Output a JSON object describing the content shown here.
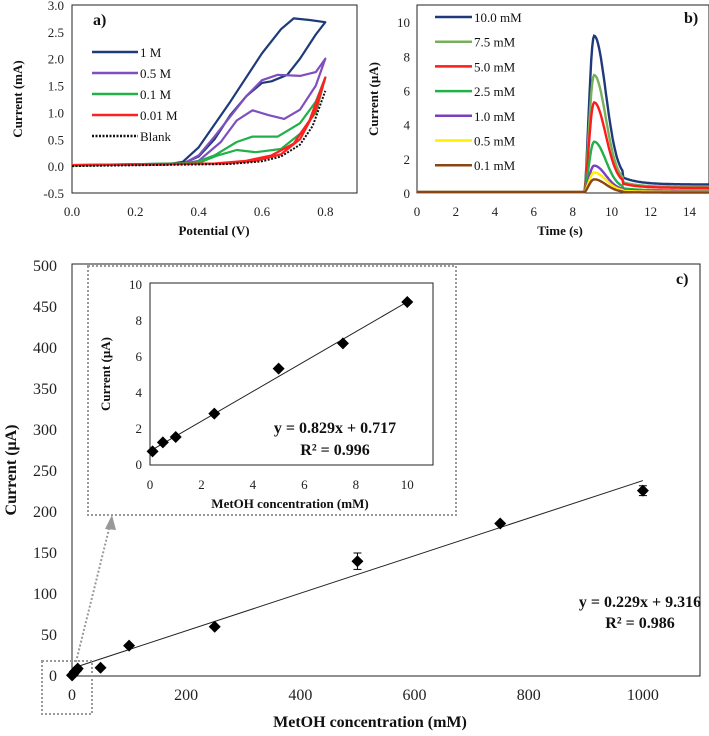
{
  "chart_data": [
    {
      "id": "a",
      "type": "line",
      "panel_label": "a)",
      "xlabel": "Potential (V)",
      "ylabel": "Current (mA)",
      "xlim": [
        0,
        0.9
      ],
      "ylim": [
        -0.5,
        3.0
      ],
      "xticks": [
        "0.0",
        "0.2",
        "0.4",
        "0.6",
        "0.8"
      ],
      "yticks": [
        "-0.5",
        "0.0",
        "0.5",
        "1.0",
        "1.5",
        "2.0",
        "2.5",
        "3.0"
      ],
      "series": [
        {
          "name": "1 M",
          "color": "#1f3a7a",
          "points": [
            [
              0,
              0.02
            ],
            [
              0.3,
              0.03
            ],
            [
              0.35,
              0.08
            ],
            [
              0.4,
              0.35
            ],
            [
              0.5,
              1.2
            ],
            [
              0.6,
              2.1
            ],
            [
              0.66,
              2.55
            ],
            [
              0.7,
              2.75
            ],
            [
              0.75,
              2.72
            ],
            [
              0.8,
              2.68
            ],
            [
              0.77,
              2.45
            ],
            [
              0.72,
              2.0
            ],
            [
              0.68,
              1.7
            ],
            [
              0.63,
              1.58
            ],
            [
              0.6,
              1.55
            ],
            [
              0.55,
              1.3
            ],
            [
              0.5,
              0.95
            ],
            [
              0.45,
              0.5
            ],
            [
              0.4,
              0.18
            ],
            [
              0.35,
              0.05
            ],
            [
              0,
              0.02
            ]
          ]
        },
        {
          "name": "0.5 M",
          "color": "#7e4fbf",
          "points": [
            [
              0,
              0.02
            ],
            [
              0.35,
              0.04
            ],
            [
              0.4,
              0.2
            ],
            [
              0.45,
              0.55
            ],
            [
              0.55,
              1.3
            ],
            [
              0.6,
              1.6
            ],
            [
              0.65,
              1.7
            ],
            [
              0.72,
              1.68
            ],
            [
              0.77,
              1.75
            ],
            [
              0.8,
              2.0
            ],
            [
              0.77,
              1.5
            ],
            [
              0.72,
              1.05
            ],
            [
              0.67,
              0.88
            ],
            [
              0.62,
              0.95
            ],
            [
              0.57,
              1.04
            ],
            [
              0.52,
              0.85
            ],
            [
              0.47,
              0.45
            ],
            [
              0.4,
              0.1
            ],
            [
              0.35,
              0.04
            ],
            [
              0,
              0.02
            ]
          ]
        },
        {
          "name": "0.1 M",
          "color": "#22b04a",
          "points": [
            [
              0,
              0.01
            ],
            [
              0.38,
              0.05
            ],
            [
              0.45,
              0.2
            ],
            [
              0.52,
              0.45
            ],
            [
              0.57,
              0.55
            ],
            [
              0.65,
              0.55
            ],
            [
              0.72,
              0.8
            ],
            [
              0.77,
              1.2
            ],
            [
              0.8,
              1.65
            ],
            [
              0.77,
              1.0
            ],
            [
              0.72,
              0.6
            ],
            [
              0.66,
              0.32
            ],
            [
              0.58,
              0.26
            ],
            [
              0.52,
              0.3
            ],
            [
              0.46,
              0.2
            ],
            [
              0.4,
              0.06
            ],
            [
              0,
              0.01
            ]
          ]
        },
        {
          "name": "0.01 M",
          "color": "#ff2020",
          "points": [
            [
              0,
              0.02
            ],
            [
              0.45,
              0.05
            ],
            [
              0.55,
              0.1
            ],
            [
              0.63,
              0.2
            ],
            [
              0.7,
              0.42
            ],
            [
              0.75,
              0.85
            ],
            [
              0.8,
              1.65
            ],
            [
              0.77,
              1.05
            ],
            [
              0.72,
              0.5
            ],
            [
              0.66,
              0.22
            ],
            [
              0.58,
              0.1
            ],
            [
              0.48,
              0.05
            ],
            [
              0,
              0.02
            ]
          ]
        },
        {
          "name": "Blank",
          "color": "#111111",
          "dotted": true,
          "points": [
            [
              0,
              0
            ],
            [
              0.5,
              0.04
            ],
            [
              0.6,
              0.09
            ],
            [
              0.66,
              0.18
            ],
            [
              0.72,
              0.4
            ],
            [
              0.76,
              0.75
            ],
            [
              0.8,
              1.4
            ]
          ]
        }
      ]
    },
    {
      "id": "b",
      "type": "line",
      "panel_label": "b)",
      "xlabel": "Time (s)",
      "ylabel": "Current (μA)",
      "xlim": [
        0,
        15
      ],
      "ylim": [
        0,
        11
      ],
      "xticks": [
        "0",
        "2",
        "4",
        "6",
        "8",
        "10",
        "12",
        "14"
      ],
      "yticks": [
        "0",
        "2",
        "4",
        "6",
        "8",
        "10"
      ],
      "peak_time": 9.1,
      "series": [
        {
          "name": "10.0 mM",
          "color": "#1f3a7a",
          "peak": 9.2,
          "tail": 0.5
        },
        {
          "name": "7.5 mM",
          "color": "#77b05a",
          "peak": 6.9,
          "tail": 0.35
        },
        {
          "name": "5.0 mM",
          "color": "#ff1a1a",
          "peak": 5.3,
          "tail": 0.3
        },
        {
          "name": "2.5 mM",
          "color": "#22b04a",
          "peak": 3.0,
          "tail": 0.15
        },
        {
          "name": "1.0 mM",
          "color": "#7a3fbf",
          "peak": 1.6,
          "tail": 0.1
        },
        {
          "name": "0.5 mM",
          "color": "#ffee00",
          "peak": 1.2,
          "tail": 0.07
        },
        {
          "name": "0.1 mM",
          "color": "#8b4513",
          "peak": 0.8,
          "tail": 0.03
        }
      ]
    },
    {
      "id": "c",
      "type": "scatter",
      "panel_label": "c)",
      "xlabel": "MetOH concentration  (mM)",
      "ylabel": "Current  (μA)",
      "xlim": [
        0,
        1100
      ],
      "ylim": [
        0,
        500
      ],
      "xticks": [
        "0",
        "200",
        "400",
        "600",
        "800",
        "1000"
      ],
      "yticks": [
        "0",
        "50",
        "100",
        "150",
        "200",
        "250",
        "300",
        "350",
        "400",
        "450",
        "500"
      ],
      "x": [
        0.1,
        0.5,
        1,
        2.5,
        5,
        7.5,
        10,
        50,
        100,
        250,
        500,
        750,
        1000
      ],
      "y": [
        0.7,
        1.2,
        1.5,
        2.8,
        5.3,
        6.7,
        9.0,
        10,
        37,
        60,
        140,
        186,
        226
      ],
      "error": [
        0,
        0,
        0,
        0,
        0,
        0,
        0,
        0,
        0,
        0,
        10,
        0,
        6
      ],
      "fit": {
        "slope": 0.229,
        "intercept": 9.316,
        "range": [
          0,
          1000
        ]
      },
      "equation": "y = 0.229x + 9.316",
      "r2": "R² = 0.986"
    },
    {
      "id": "c-inset",
      "type": "scatter",
      "xlabel": "MetOH  concentration  (mM)",
      "ylabel": "Current  (μA)",
      "xlim": [
        0,
        11
      ],
      "ylim": [
        0,
        10
      ],
      "xticks": [
        "0",
        "2",
        "4",
        "6",
        "8",
        "10"
      ],
      "yticks": [
        "0",
        "2",
        "4",
        "6",
        "8",
        "10"
      ],
      "x": [
        0.1,
        0.5,
        1,
        2.5,
        5,
        7.5,
        10
      ],
      "y": [
        0.7,
        1.2,
        1.5,
        2.8,
        5.3,
        6.7,
        9.0
      ],
      "fit": {
        "slope": 0.829,
        "intercept": 0.717,
        "range": [
          0.1,
          10
        ]
      },
      "equation": "y = 0.829x + 0.717",
      "r2": "R² = 0.996"
    }
  ]
}
